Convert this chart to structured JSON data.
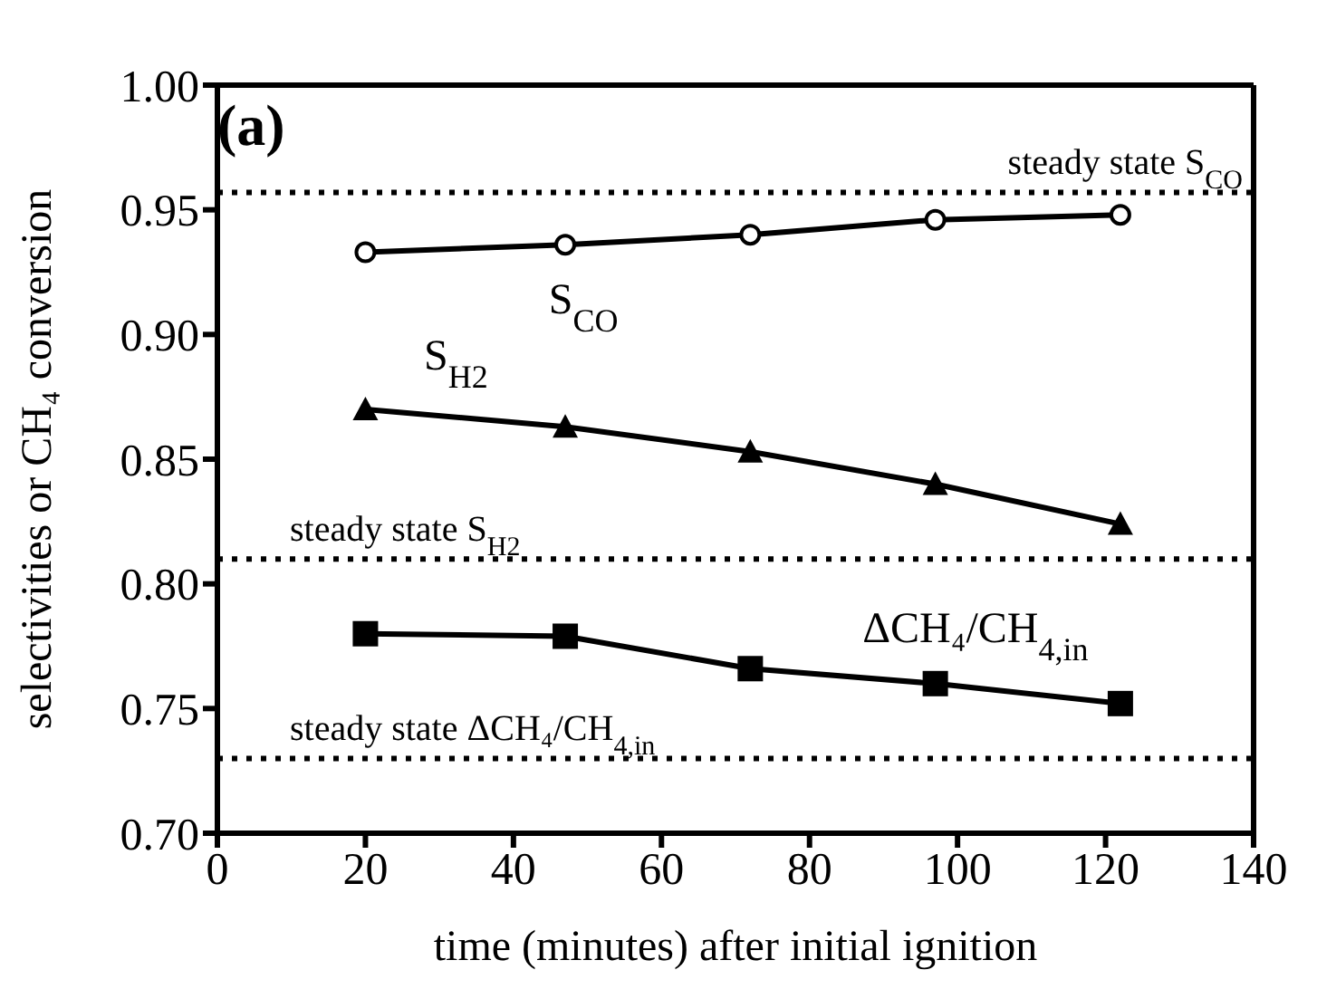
{
  "chart_data": {
    "type": "line",
    "title": "(a)",
    "xlabel": "time (minutes) after initial ignition",
    "ylabel": "selectivities or CH₄ conversion",
    "x": [
      20,
      47,
      72,
      97,
      122
    ],
    "series": [
      {
        "name": "S$_{CO}$",
        "color": "#000000",
        "marker": "circle",
        "values": [
          0.933,
          0.936,
          0.94,
          0.946,
          0.948
        ]
      },
      {
        "name": "S$_{H2}$",
        "color": "#000000",
        "marker": "triangle",
        "values": [
          0.87,
          0.863,
          0.853,
          0.84,
          0.824
        ]
      },
      {
        "name": "ΔCH₄/CH$_{4,in}$",
        "color": "#000000",
        "marker": "square",
        "values": [
          0.78,
          0.779,
          0.766,
          0.76,
          0.752
        ]
      }
    ],
    "ref_lines": [
      {
        "axis": "y",
        "value": 0.957,
        "label": "steady state S$_{CO}$",
        "line_style": "dotted"
      },
      {
        "axis": "y",
        "value": 0.81,
        "label": "steady state S$_{H2}$",
        "line_style": "dotted"
      },
      {
        "axis": "y",
        "value": 0.73,
        "label": "steady state ΔCH₄/CH$_{4,in}$",
        "line_style": "dotted"
      }
    ],
    "xlim": [
      0,
      140
    ],
    "xticks": [
      0,
      20,
      40,
      60,
      80,
      100,
      120,
      140
    ],
    "ylim": [
      0.7,
      1.0
    ],
    "yticks": [
      {
        "value": 0.7,
        "label": "0.70"
      },
      {
        "value": 0.75,
        "label": "0.75"
      },
      {
        "value": 0.8,
        "label": "0.80"
      },
      {
        "value": 0.85,
        "label": "0.85"
      },
      {
        "value": 0.9,
        "label": "0.90"
      },
      {
        "value": 0.95,
        "label": "0.95"
      },
      {
        "value": 1.0,
        "label": "1.00"
      }
    ],
    "grid": false,
    "legend": false
  }
}
